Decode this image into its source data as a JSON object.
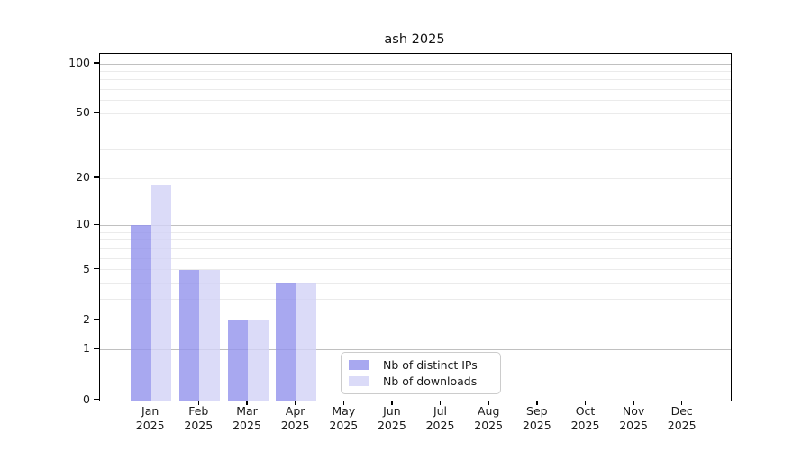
{
  "chart_data": {
    "type": "bar",
    "title": "ash 2025",
    "categories": [
      "Jan",
      "Feb",
      "Mar",
      "Apr",
      "May",
      "Jun",
      "Jul",
      "Aug",
      "Sep",
      "Oct",
      "Nov",
      "Dec"
    ],
    "x_tick_year": "2025",
    "series": [
      {
        "name": "Nb of distinct IPs",
        "color": "#9292ec",
        "values": [
          10,
          5,
          2,
          4,
          0,
          0,
          0,
          0,
          0,
          0,
          0,
          0
        ]
      },
      {
        "name": "Nb of downloads",
        "color": "#d2d2f6",
        "values": [
          18,
          5,
          2,
          4,
          0,
          0,
          0,
          0,
          0,
          0,
          0,
          0
        ]
      }
    ],
    "bar_opacity": 0.8,
    "yscale": "log10(value+1)",
    "ylim": [
      0,
      114
    ],
    "yticks": [
      0,
      1,
      2,
      5,
      10,
      20,
      50,
      100
    ],
    "major_gridlines": [
      1,
      10,
      100
    ],
    "minor_gridlines": [
      2,
      3,
      4,
      5,
      6,
      7,
      8,
      9,
      20,
      30,
      40,
      50,
      60,
      70,
      80,
      90
    ],
    "grid": "horizontal only",
    "legend_position": "inside, lower center-left",
    "colors": {
      "bar_distinct_ips_effective": "#a8a8f0",
      "bar_downloads_effective": "#dbdbf8",
      "major_grid": "#c0c0c0",
      "minor_grid": "#ebebeb",
      "spine": "#000000",
      "text": "#1a1a1a",
      "background": "#ffffff"
    }
  }
}
